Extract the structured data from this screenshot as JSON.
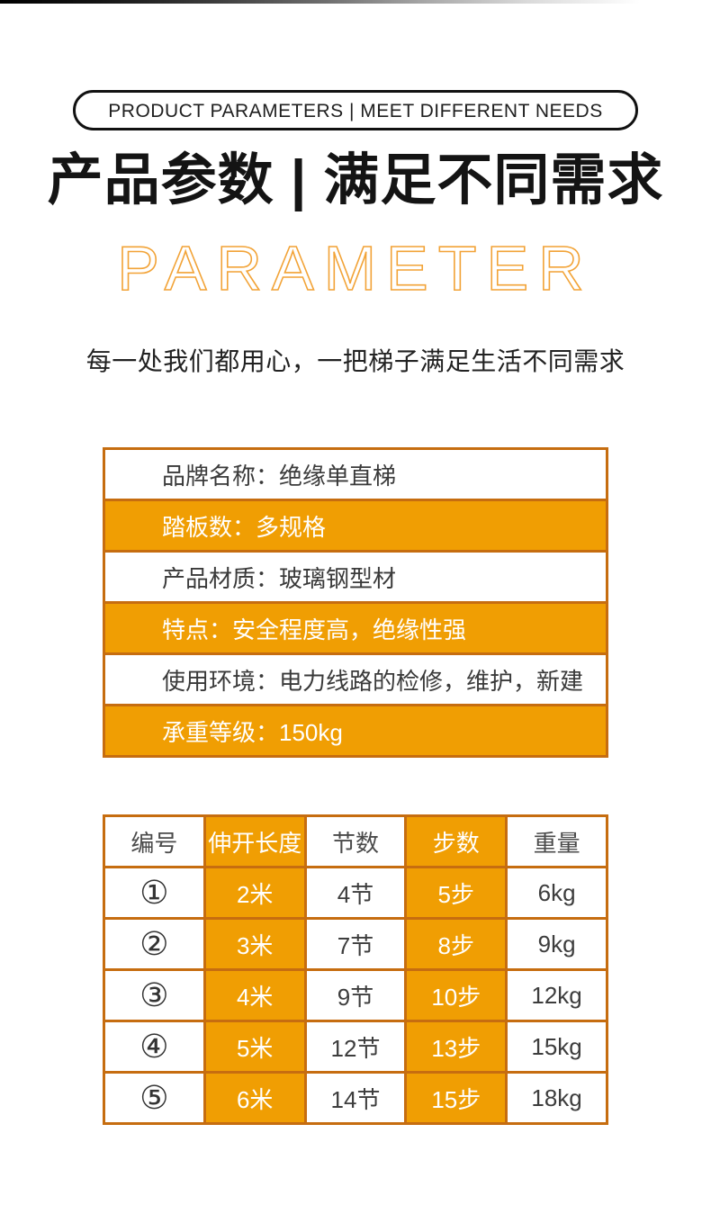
{
  "badge": {
    "label": "PRODUCT PARAMETERS | MEET DIFFERENT NEEDS"
  },
  "heading": {
    "title": "产品参数 | 满足不同需求",
    "watermark": "PARAMETER",
    "subtitle": "每一处我们都用心，一把梯子满足生活不同需求"
  },
  "colors": {
    "highlight_orange": "#F09E03",
    "grid_border_orange": "#C66D10",
    "watermark_orange": "#F4A53C",
    "text_dark": "#1f1f1f"
  },
  "param_list": {
    "rows": [
      {
        "text": "品牌名称：绝缘单直梯",
        "highlight": false
      },
      {
        "text": "踏板数：多规格",
        "highlight": true
      },
      {
        "text": "产品材质：玻璃钢型材",
        "highlight": false
      },
      {
        "text": "特点：安全程度高，绝缘性强",
        "highlight": true
      },
      {
        "text": "使用环境：电力线路的检修，维护，新建",
        "highlight": false
      },
      {
        "text": "承重等级：150kg",
        "highlight": true
      }
    ]
  },
  "spec_table": {
    "headers": [
      "编号",
      "伸开长度",
      "节数",
      "步数",
      "重量"
    ],
    "highlight_columns": [
      1,
      3
    ],
    "rows": [
      [
        "①",
        "2米",
        "4节",
        "5步",
        "6kg"
      ],
      [
        "②",
        "3米",
        "7节",
        "8步",
        "9kg"
      ],
      [
        "③",
        "4米",
        "9节",
        "10步",
        "12kg"
      ],
      [
        "④",
        "5米",
        "12节",
        "13步",
        "15kg"
      ],
      [
        "⑤",
        "6米",
        "14节",
        "15步",
        "18kg"
      ]
    ]
  }
}
